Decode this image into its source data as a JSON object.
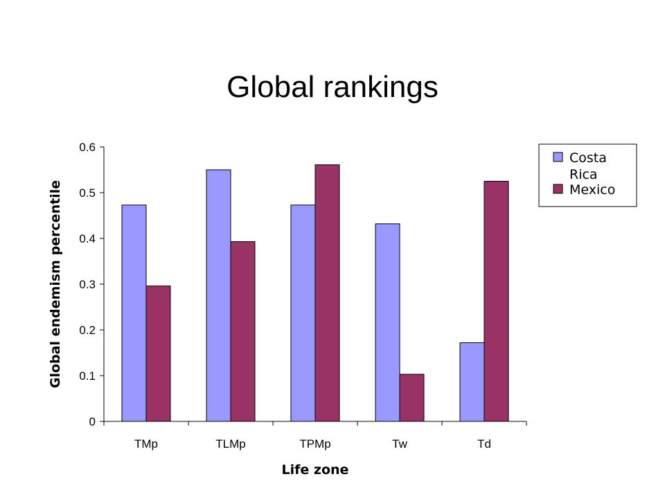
{
  "slide": {
    "title": "Global rankings"
  },
  "chart_data": {
    "type": "bar",
    "categories": [
      "TMp",
      "TLMp",
      "TPMp",
      "Tw",
      "Td"
    ],
    "series": [
      {
        "name": "Costa Rica",
        "color": "#9999ff",
        "values": [
          0.473,
          0.55,
          0.473,
          0.432,
          0.172
        ]
      },
      {
        "name": "Mexico",
        "color": "#993366",
        "values": [
          0.296,
          0.393,
          0.561,
          0.103,
          0.525
        ]
      }
    ],
    "xlabel": "Life zone",
    "ylabel": "Global endemism percentile",
    "ylim": [
      0,
      0.6
    ],
    "yticks": [
      "0",
      "0.1",
      "0.2",
      "0.3",
      "0.4",
      "0.5",
      "0.6"
    ],
    "grid": false,
    "legend": {
      "position": "right",
      "entries": [
        [
          "Costa",
          "Rica"
        ],
        [
          "Mexico"
        ]
      ]
    }
  }
}
